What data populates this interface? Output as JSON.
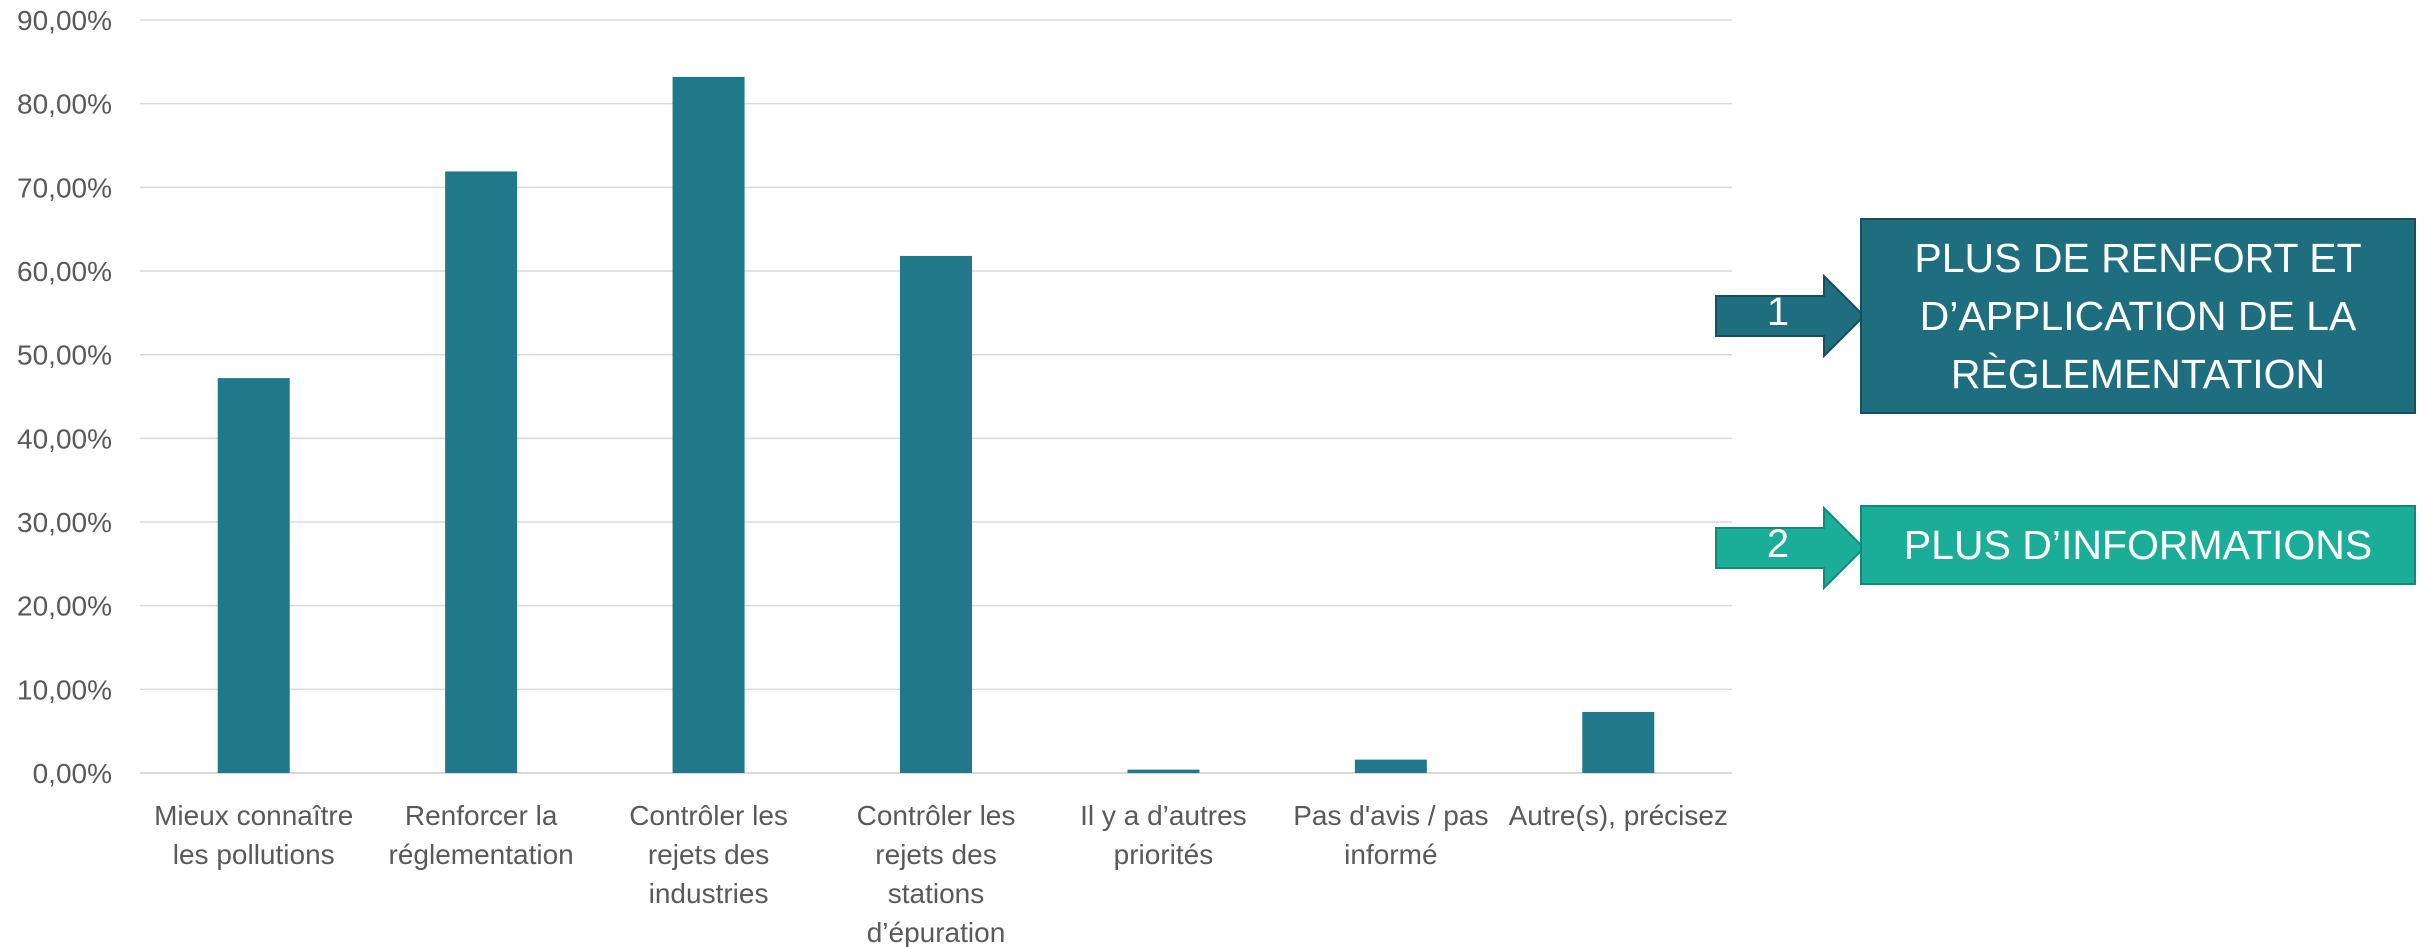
{
  "chart_data": {
    "type": "bar",
    "categories": [
      [
        "Mieux connaître",
        "les pollutions"
      ],
      [
        "Renforcer la",
        "réglementation"
      ],
      [
        "Contrôler les",
        "rejets des",
        "industries"
      ],
      [
        "Contrôler les",
        "rejets des",
        "stations",
        "d’épuration"
      ],
      [
        "Il y a d’autres",
        "priorités"
      ],
      [
        "Pas d'avis / pas",
        "informé"
      ],
      [
        "Autre(s), précisez"
      ]
    ],
    "values": [
      47.2,
      71.9,
      83.2,
      61.8,
      0.4,
      1.6,
      7.3
    ],
    "ylim": [
      0,
      90
    ],
    "yticks": [
      "0,00%",
      "10,00%",
      "20,00%",
      "30,00%",
      "40,00%",
      "50,00%",
      "60,00%",
      "70,00%",
      "80,00%",
      "90,00%"
    ],
    "grid": true,
    "bar_color": "#21788A",
    "grid_color": "#D9D9D9"
  },
  "callouts": [
    {
      "number": "1",
      "lines": [
        "PLUS DE RENFORT ET",
        "D’APPLICATION DE LA",
        "RÈGLEMENTATION"
      ],
      "color": "#1F6E80"
    },
    {
      "number": "2",
      "lines": [
        "PLUS  D’INFORMATIONS"
      ],
      "color": "#1AAE98"
    }
  ]
}
